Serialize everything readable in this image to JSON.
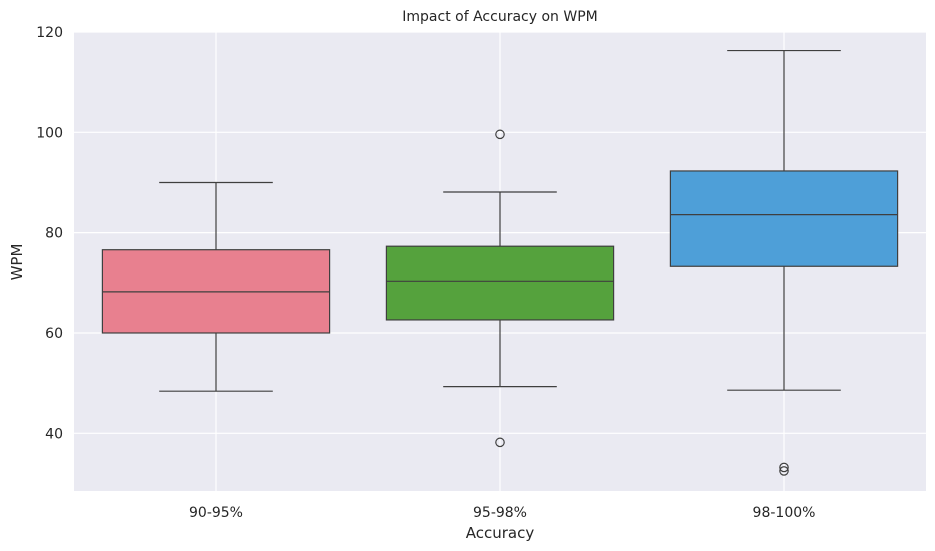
{
  "chart_data": {
    "type": "box",
    "title": "Impact of Accuracy on WPM",
    "xlabel": "Accuracy",
    "ylabel": "WPM",
    "ylim": [
      28.5,
      120
    ],
    "yticks": [
      40,
      60,
      80,
      100,
      120
    ],
    "grid": true,
    "categories": [
      "90-95%",
      "95-98%",
      "98-100%"
    ],
    "boxes": [
      {
        "category": "90-95%",
        "whisker_low": 48.4,
        "q1": 60.0,
        "median": 68.2,
        "q3": 76.6,
        "whisker_high": 90.0,
        "outliers": [],
        "color": "#e8808f"
      },
      {
        "category": "95-98%",
        "whisker_low": 49.3,
        "q1": 62.6,
        "median": 70.3,
        "q3": 77.3,
        "whisker_high": 88.1,
        "outliers": [
          38.2,
          99.6
        ],
        "color": "#55a23d"
      },
      {
        "category": "98-100%",
        "whisker_low": 48.6,
        "q1": 73.3,
        "median": 83.6,
        "q3": 92.3,
        "whisker_high": 116.3,
        "outliers": [
          32.5,
          33.2
        ],
        "color": "#4e9fd8"
      }
    ]
  },
  "colors": {
    "plot_background": "#eaeaf2",
    "grid": "#ffffff",
    "box_edge": "#3f3f3f",
    "text": "#262626"
  }
}
